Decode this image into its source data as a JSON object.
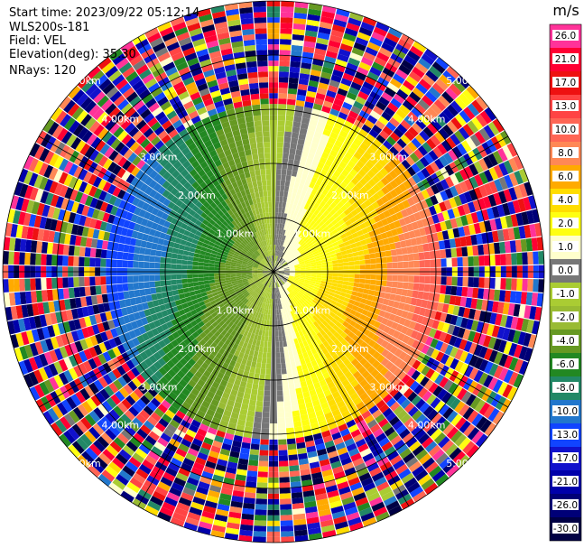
{
  "header": {
    "start_time": "Start time: 2023/09/22 05:12:14",
    "device": "WLS200s-181",
    "field": "Field: VEL",
    "elevation": "Elevation(deg): 35.30",
    "nrays": "NRays: 120"
  },
  "chart_data": {
    "type": "heatmap",
    "subtype": "radar-ppi",
    "field": "VEL",
    "nrays": 120,
    "range_rings_km": [
      1,
      2,
      3,
      4,
      5
    ],
    "ring_labels": [
      "1.00km",
      "2.00km",
      "3.00km",
      "4.00km",
      "5.00km"
    ],
    "radial_lines_deg": [
      0,
      30,
      60,
      90,
      120,
      150,
      180,
      210,
      240,
      270,
      300,
      330
    ],
    "clean_range_km": 3.1,
    "max_range_km": 5.0,
    "flow_direction": "approaching from west (negative), receding to east (positive)",
    "colorbar": {
      "unit": "m/s",
      "ticks": [
        "26.0",
        "21.0",
        "17.0",
        "13.0",
        "10.0",
        "8.0",
        "6.0",
        "4.0",
        "2.0",
        "1.0",
        "0.0",
        "-1.0",
        "-2.0",
        "-4.0",
        "-6.0",
        "-8.0",
        "-10.0",
        "-13.0",
        "-17.0",
        "-21.0",
        "-26.0",
        "-30.0"
      ],
      "colors": [
        "#ff3399",
        "#ff0033",
        "#ee1111",
        "#ff4444",
        "#ff6655",
        "#ff8855",
        "#ffaa00",
        "#ffdd00",
        "#ffff11",
        "#ffffcc",
        "#777777",
        "#aacc33",
        "#99bb33",
        "#669922",
        "#228822",
        "#228866",
        "#2277cc",
        "#1144ff",
        "#1111cc",
        "#0000aa",
        "#000077",
        "#000044"
      ]
    }
  }
}
